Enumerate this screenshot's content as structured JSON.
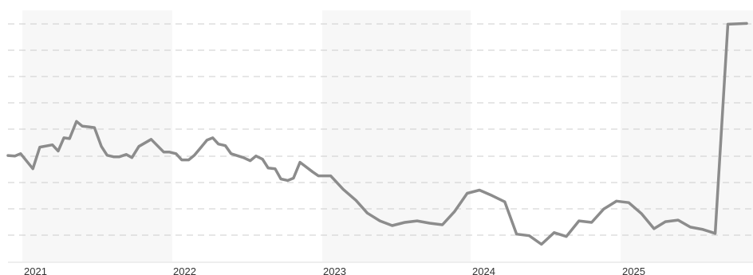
{
  "chart_data": {
    "type": "line",
    "title": "",
    "xlabel": "",
    "ylabel": "",
    "grid": true,
    "legend": "none",
    "colors": {
      "line": "#8c8c8c",
      "band": "#f7f7f7",
      "grid": "#cccccc",
      "axis": "#dddddd"
    },
    "x_tick_labels": [
      "2021",
      "2022",
      "2023",
      "2024",
      "2025"
    ],
    "x_range": [
      "2020-10-15",
      "2025-09-30"
    ],
    "y_range": [
      0,
      100
    ],
    "series": [
      {
        "values": [
          [
            "2020-10-15",
            40.5
          ],
          [
            "2020-11-01",
            40.3
          ],
          [
            "2020-11-15",
            41.2
          ],
          [
            "2020-12-15",
            35.4
          ],
          [
            "2021-01-01",
            43.7
          ],
          [
            "2021-02-01",
            44.6
          ],
          [
            "2021-02-15",
            42.2
          ],
          [
            "2021-03-01",
            47.3
          ],
          [
            "2021-03-15",
            47.0
          ],
          [
            "2021-04-01",
            53.6
          ],
          [
            "2021-04-15",
            51.8
          ],
          [
            "2021-05-01",
            51.5
          ],
          [
            "2021-05-15",
            51.2
          ],
          [
            "2021-06-01",
            44.0
          ],
          [
            "2021-06-15",
            40.6
          ],
          [
            "2021-07-01",
            40.0
          ],
          [
            "2021-07-15",
            40.0
          ],
          [
            "2021-08-01",
            40.9
          ],
          [
            "2021-08-15",
            39.7
          ],
          [
            "2021-09-01",
            44.0
          ],
          [
            "2021-10-01",
            46.7
          ],
          [
            "2021-11-01",
            41.8
          ],
          [
            "2021-11-15",
            41.8
          ],
          [
            "2021-12-01",
            41.2
          ],
          [
            "2021-12-15",
            38.8
          ],
          [
            "2022-01-01",
            38.8
          ],
          [
            "2022-01-15",
            40.6
          ],
          [
            "2022-02-15",
            46.4
          ],
          [
            "2022-03-01",
            47.3
          ],
          [
            "2022-03-15",
            44.9
          ],
          [
            "2022-04-01",
            44.3
          ],
          [
            "2022-04-15",
            41.2
          ],
          [
            "2022-05-15",
            39.7
          ],
          [
            "2022-06-01",
            38.5
          ],
          [
            "2022-06-15",
            40.3
          ],
          [
            "2022-07-01",
            39.1
          ],
          [
            "2022-07-15",
            35.7
          ],
          [
            "2022-08-01",
            35.4
          ],
          [
            "2022-08-15",
            31.5
          ],
          [
            "2022-09-01",
            30.9
          ],
          [
            "2022-09-15",
            31.8
          ],
          [
            "2022-10-01",
            37.9
          ],
          [
            "2022-11-01",
            34.2
          ],
          [
            "2022-11-15",
            32.7
          ],
          [
            "2022-12-15",
            32.7
          ],
          [
            "2023-01-15",
            27.5
          ],
          [
            "2023-02-15",
            23.3
          ],
          [
            "2023-03-15",
            18.4
          ],
          [
            "2023-04-15",
            15.4
          ],
          [
            "2023-05-15",
            13.6
          ],
          [
            "2023-06-15",
            14.8
          ],
          [
            "2023-07-15",
            15.4
          ],
          [
            "2023-08-15",
            14.5
          ],
          [
            "2023-09-15",
            13.9
          ],
          [
            "2023-10-15",
            19.0
          ],
          [
            "2023-11-15",
            26.0
          ],
          [
            "2023-12-15",
            27.2
          ],
          [
            "2024-01-15",
            25.1
          ],
          [
            "2024-02-15",
            22.7
          ],
          [
            "2024-03-15",
            10.3
          ],
          [
            "2024-04-15",
            9.7
          ],
          [
            "2024-05-15",
            6.4
          ],
          [
            "2024-06-15",
            10.9
          ],
          [
            "2024-07-15",
            9.4
          ],
          [
            "2024-08-15",
            15.4
          ],
          [
            "2024-09-15",
            14.8
          ],
          [
            "2024-10-15",
            20.0
          ],
          [
            "2024-11-15",
            23.0
          ],
          [
            "2024-12-15",
            22.4
          ],
          [
            "2025-01-15",
            18.2
          ],
          [
            "2025-02-15",
            12.4
          ],
          [
            "2025-03-15",
            15.1
          ],
          [
            "2025-04-15",
            15.7
          ],
          [
            "2025-05-15",
            13.0
          ],
          [
            "2025-06-15",
            12.1
          ],
          [
            "2025-07-15",
            10.6
          ],
          [
            "2025-08-15",
            90.9
          ],
          [
            "2025-09-30",
            91.2
          ]
        ]
      }
    ]
  }
}
